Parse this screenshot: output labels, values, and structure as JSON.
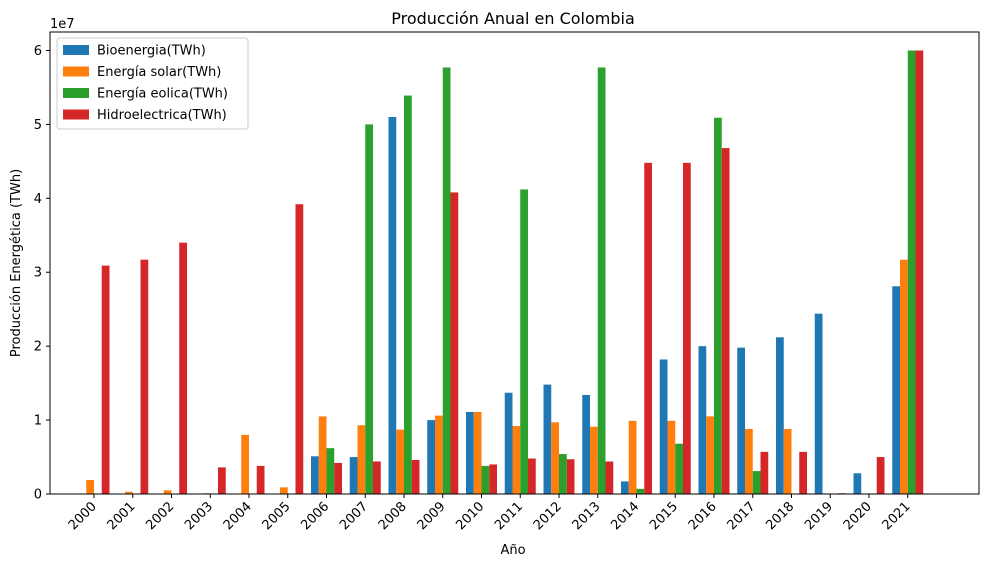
{
  "chart_data": {
    "type": "bar",
    "title": "Producción Anual en Colombia",
    "xlabel": "Año",
    "ylabel": "Producción Energética (TWh)",
    "y_scale_label": "1e7",
    "y_tick_labels": [
      "0",
      "1",
      "2",
      "3",
      "4",
      "5",
      "6"
    ],
    "ylim": [
      0,
      62500000
    ],
    "legend_position": "top-left",
    "grid": false,
    "categories": [
      "2000",
      "2001",
      "2002",
      "2003",
      "2004",
      "2005",
      "2006",
      "2007",
      "2008",
      "2009",
      "2010",
      "2011",
      "2012",
      "2013",
      "2014",
      "2015",
      "2016",
      "2017",
      "2018",
      "2019",
      "2020",
      "2021"
    ],
    "series": [
      {
        "name": "Bioenergia(TWh)",
        "color": "#1f77b4",
        "values": [
          0,
          0,
          0,
          0,
          0,
          0,
          5100000,
          5000000,
          51000000,
          10000000,
          11100000,
          13700000,
          14800000,
          13400000,
          1700000,
          18200000,
          20000000,
          19800000,
          21200000,
          24400000,
          2800000,
          28100000
        ]
      },
      {
        "name": "Energía solar(TWh)",
        "color": "#ff7f0e",
        "values": [
          1900000,
          300000,
          500000,
          100000,
          8000000,
          900000,
          10500000,
          9300000,
          8700000,
          10600000,
          11100000,
          9200000,
          9700000,
          9100000,
          9900000,
          9900000,
          10500000,
          8800000,
          8800000,
          0,
          0,
          31700000
        ]
      },
      {
        "name": "Energía eolica(TWh)",
        "color": "#2ca02c",
        "values": [
          0,
          0,
          0,
          0,
          0,
          0,
          6200000,
          50000000,
          53900000,
          57700000,
          3800000,
          41200000,
          5400000,
          57700000,
          700000,
          6800000,
          50900000,
          3100000,
          0,
          0,
          0,
          60000000
        ]
      },
      {
        "name": "Hidroelectrica(TWh)",
        "color": "#d62728",
        "values": [
          30900000,
          31700000,
          34000000,
          3600000,
          3800000,
          39200000,
          4200000,
          4400000,
          4600000,
          40800000,
          4000000,
          4800000,
          4700000,
          4400000,
          44800000,
          44800000,
          46800000,
          5700000,
          5700000,
          100000,
          5000000,
          60000000
        ]
      }
    ]
  }
}
